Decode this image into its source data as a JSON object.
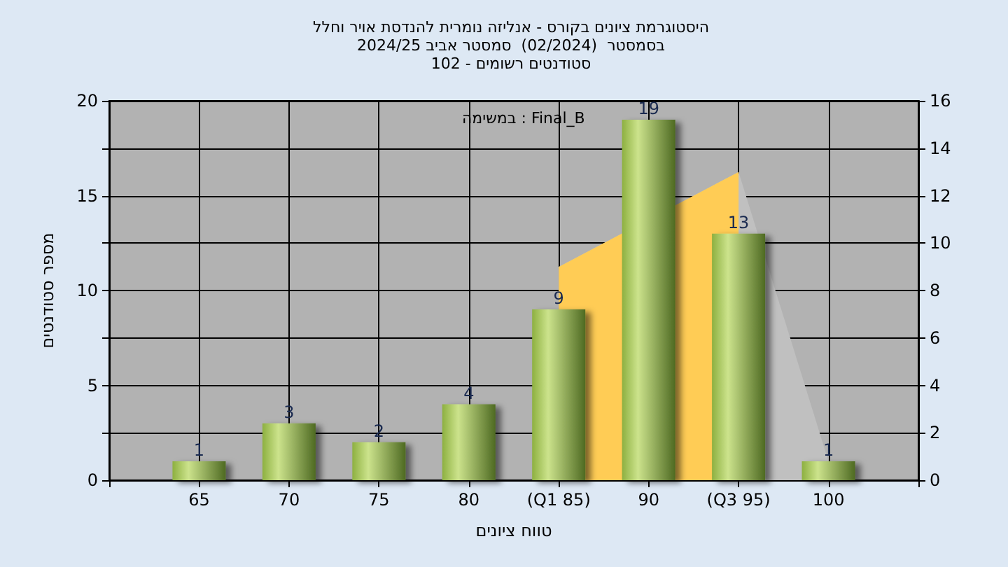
{
  "chart_data": {
    "type": "bar",
    "title": "היסטוגרמת ציונים בקורס - אנליזה נומרית להנדסת אויר וחלל\nבסמסטר  (02/2024)  סמסטר אביב 2024/25\nסטודנטים רשומים - 102",
    "xlabel": "טווח ציונים",
    "ylabel": "מספר סטודנטים",
    "annotations": [
      "במשימה : Final_B"
    ],
    "categories": [
      null,
      "65",
      "70",
      "75",
      "80",
      "(Q1 85)",
      "90",
      "(Q3 95)",
      "100",
      null
    ],
    "series": [
      {
        "color": "#8db040",
        "values": [
          null,
          1,
          3,
          2,
          4,
          9,
          19,
          13,
          1,
          null
        ],
        "value_labels": [
          null,
          "1",
          "3",
          "2",
          "4",
          "9",
          "19",
          "13",
          "1",
          null
        ]
      },
      {
        "type": "area",
        "axis": "y2",
        "color": "#c0c0c0",
        "values": [
          null,
          null,
          null,
          null,
          null,
          9,
          null,
          13,
          0.8,
          null
        ]
      },
      {
        "type": "area",
        "axis": "y2",
        "color": "#ffcc55",
        "values": [
          null,
          null,
          null,
          null,
          null,
          9,
          null,
          13,
          null,
          null
        ]
      }
    ],
    "ylim": [
      0,
      20
    ],
    "yticks": [
      0,
      {
        "value": 2.5,
        "label": null
      },
      5,
      {
        "value": 7.5,
        "label": null
      },
      10,
      {
        "value": 12.5,
        "label": null
      },
      15,
      {
        "value": 17.5,
        "label": null
      },
      20
    ],
    "y2lim": [
      0,
      16
    ],
    "y2ticks": [
      0,
      2,
      4,
      6,
      8,
      10,
      12,
      14,
      16
    ],
    "grid": true
  }
}
